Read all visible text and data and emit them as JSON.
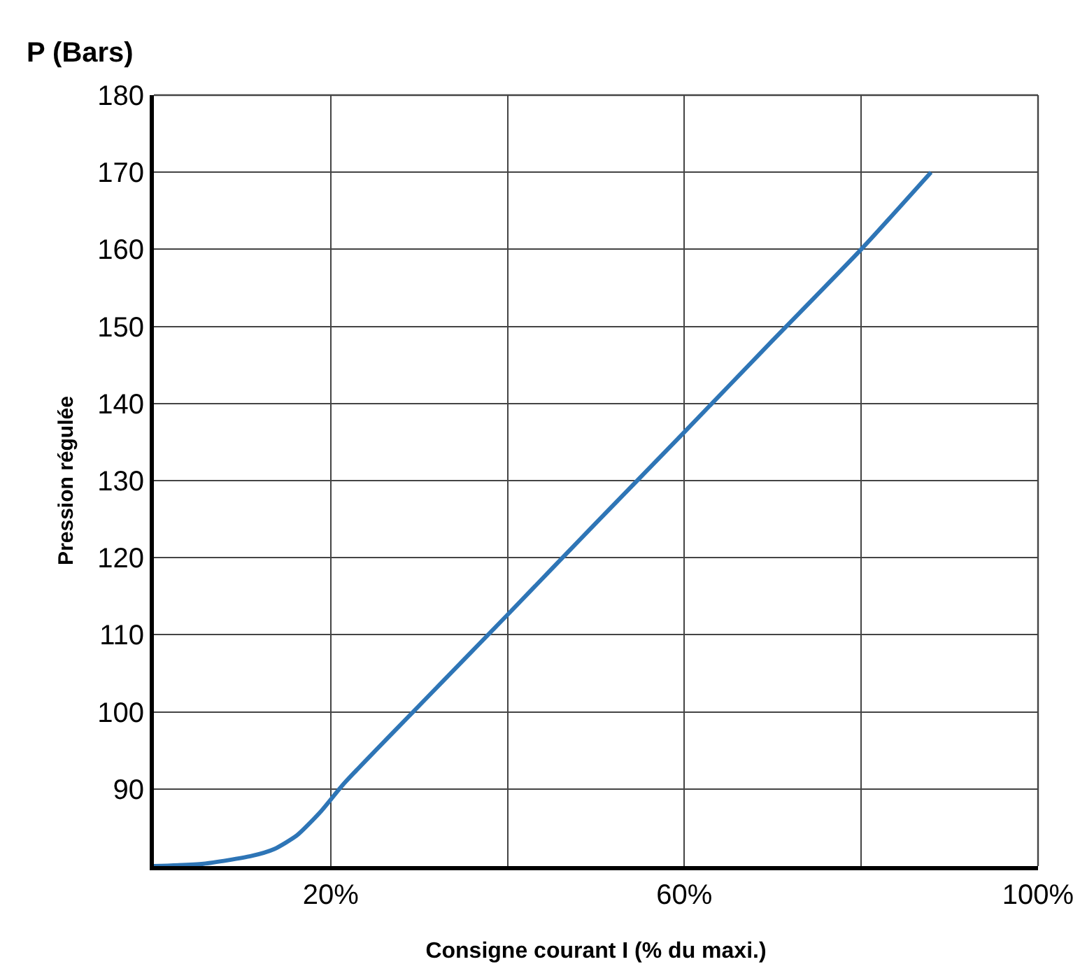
{
  "chart_data": {
    "type": "line",
    "xlabel": "Consigne courant I (% du maxi.)",
    "ylabel": "Pression régulée",
    "annotations": [
      "P (Bars)"
    ],
    "x": [
      0,
      5.6,
      11,
      13.6,
      16.2,
      18.9,
      21.5,
      30,
      40,
      50,
      60,
      70,
      80,
      87.9
    ],
    "series": [
      {
        "color": "#2e75b6",
        "values": [
          80,
          80.3,
          81.3,
          82.2,
          84,
          87.1,
          90.7,
          100.8,
          112.6,
          124.5,
          136.3,
          148.2,
          160,
          170
        ]
      }
    ],
    "xlim": [
      0,
      100
    ],
    "xticks": [
      {
        "value": 20,
        "label": "20%"
      },
      {
        "value": 40,
        "label": null
      },
      {
        "value": 60,
        "label": "60%"
      },
      {
        "value": 80,
        "label": null
      },
      {
        "value": 100,
        "label": "100%"
      }
    ],
    "ylim": [
      80,
      180
    ],
    "yticks": [
      90,
      100,
      110,
      120,
      130,
      140,
      150,
      160,
      170,
      180
    ],
    "grid": true,
    "marker": "none",
    "line_style": "solid"
  }
}
